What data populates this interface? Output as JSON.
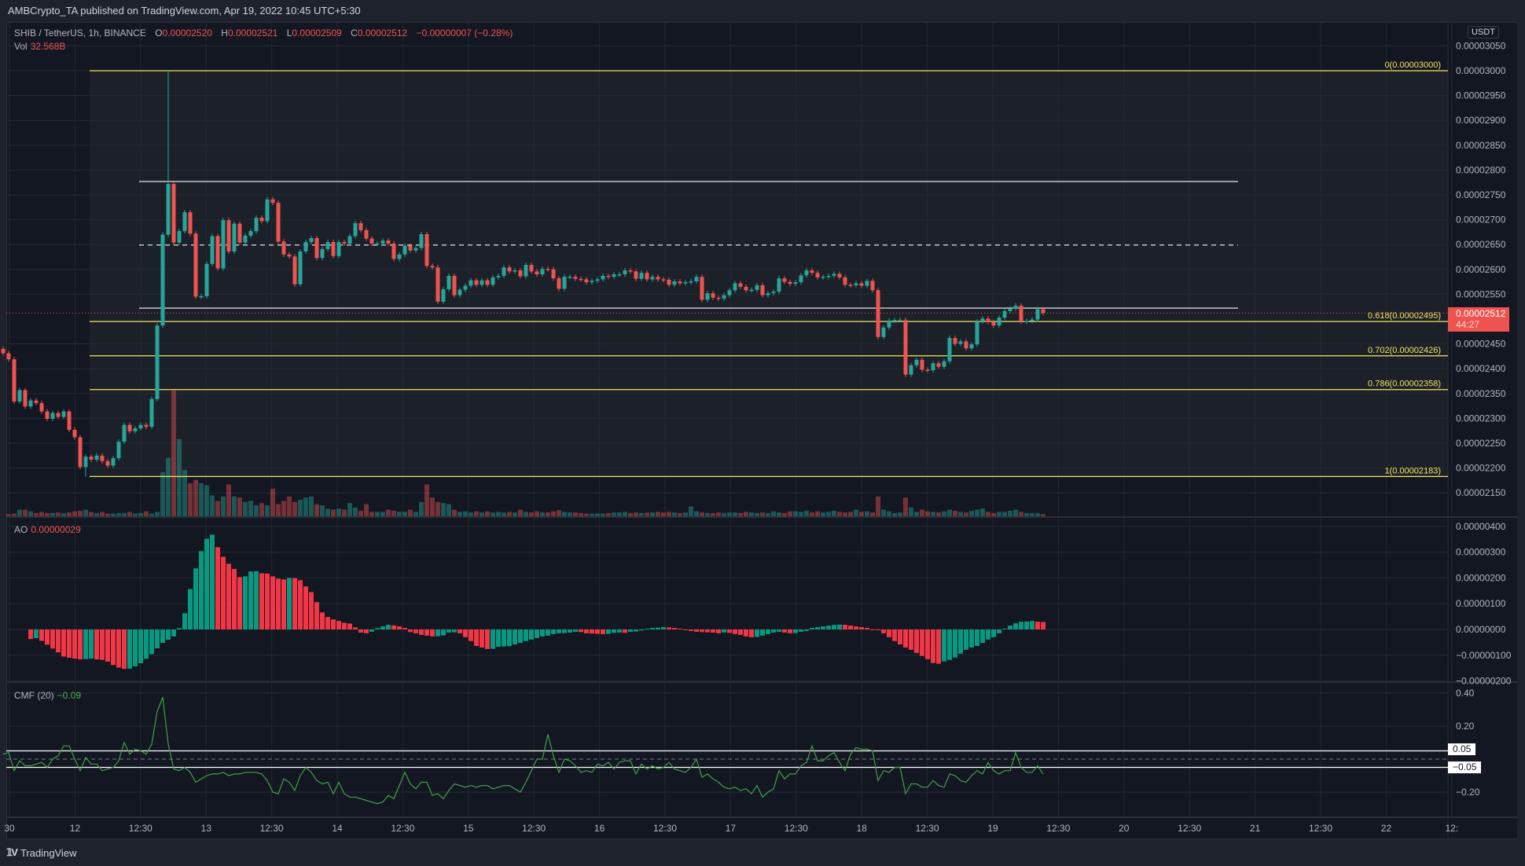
{
  "header": {
    "published": "AMBCrypto_TA published on TradingView.com, Apr 19, 2022 10:45 UTC+5:30"
  },
  "legend": {
    "symbol": "SHIB / TetherUS, 1h, BINANCE",
    "o_label": "O",
    "o": "0.00002520",
    "h_label": "H",
    "h": "0.00002521",
    "l_label": "L",
    "l": "0.00002509",
    "c_label": "C",
    "c": "0.00002512",
    "change": "−0.00000007 (−0.28%)",
    "vol_label": "Vol",
    "vol": "32.568B"
  },
  "price_axis": {
    "currency": "USDT",
    "ticks": [
      "0.00003050",
      "0.00003000",
      "0.00002950",
      "0.00002900",
      "0.00002850",
      "0.00002800",
      "0.00002750",
      "0.00002700",
      "0.00002650",
      "0.00002600",
      "0.00002550",
      "0.00002450",
      "0.00002400",
      "0.00002350",
      "0.00002300",
      "0.00002250",
      "0.00002200",
      "0.00002150"
    ],
    "current_price": "0.00002512",
    "countdown": "44:27"
  },
  "time_axis": {
    "ticks": [
      "30",
      "12",
      "12:30",
      "13",
      "12:30",
      "14",
      "12:30",
      "15",
      "12:30",
      "16",
      "12:30",
      "17",
      "12:30",
      "18",
      "12:30",
      "19",
      "12:30",
      "20",
      "12:30",
      "21",
      "12:30",
      "22",
      "12:"
    ]
  },
  "fib_levels": [
    {
      "label": "0(0.00003000)",
      "price": 3e-05
    },
    {
      "label": "0.618(0.00002495)",
      "price": 2.495e-05
    },
    {
      "label": "0.702(0.00002426)",
      "price": 2.426e-05
    },
    {
      "label": "0.786(0.00002358)",
      "price": 2.358e-05
    },
    {
      "label": "1(0.00002183)",
      "price": 2.183e-05
    }
  ],
  "range_lines": [
    {
      "price": 2.777e-05,
      "style": "solid"
    },
    {
      "price": 2.649e-05,
      "style": "dashed"
    },
    {
      "price": 2.522e-05,
      "style": "solid"
    }
  ],
  "ao": {
    "label": "AO",
    "value": "0.00000029",
    "ticks": [
      "0.00000400",
      "0.00000300",
      "0.00000200",
      "0.00000100",
      "0.00000000",
      "−0.00000100",
      "−0.00000200"
    ]
  },
  "cmf": {
    "label": "CMF (20)",
    "value": "−0.09",
    "ticks": [
      "0.40",
      "0.20",
      "−0.20"
    ],
    "bands": [
      "0.05",
      "−0.05"
    ]
  },
  "colors": {
    "up": "#26a69a",
    "down": "#ef5350",
    "ao_up": "#089981",
    "ao_down": "#f23645",
    "fib": "#f5e663",
    "cmf_line": "#43a047",
    "background": "#131722"
  },
  "footer": {
    "brand": "TradingView"
  },
  "chart_data": [
    {
      "type": "candlestick",
      "title": "SHIB / TetherUS, 1h, BINANCE",
      "ylim": [
        2.12e-05,
        3.07e-05
      ],
      "open_first": 2.44e-05,
      "close": [
        2.431e-05,
        2.419e-05,
        2.334e-05,
        2.357e-05,
        2.324e-05,
        2.336e-05,
        2.331e-05,
        2.314e-05,
        2.299e-05,
        2.311e-05,
        2.303e-05,
        2.314e-05,
        2.277e-05,
        2.262e-05,
        2.202e-05,
        2.223e-05,
        2.217e-05,
        2.225e-05,
        2.214e-05,
        2.205e-05,
        2.22e-05,
        2.253e-05,
        2.287e-05,
        2.274e-05,
        2.28e-05,
        2.287e-05,
        2.283e-05,
        2.339e-05,
        2.487e-05,
        2.67e-05,
        2.772e-05,
        2.654e-05,
        2.677e-05,
        2.715e-05,
        2.672e-05,
        2.545e-05,
        2.546e-05,
        2.611e-05,
        2.667e-05,
        2.602e-05,
        2.699e-05,
        2.636e-05,
        2.692e-05,
        2.654e-05,
        2.668e-05,
        2.677e-05,
        2.704e-05,
        2.697e-05,
        2.741e-05,
        2.734e-05,
        2.656e-05,
        2.63e-05,
        2.626e-05,
        2.57e-05,
        2.636e-05,
        2.655e-05,
        2.663e-05,
        2.623e-05,
        2.641e-05,
        2.655e-05,
        2.627e-05,
        2.655e-05,
        2.652e-05,
        2.667e-05,
        2.693e-05,
        2.679e-05,
        2.662e-05,
        2.652e-05,
        2.652e-05,
        2.658e-05,
        2.652e-05,
        2.621e-05,
        2.63e-05,
        2.648e-05,
        2.638e-05,
        2.643e-05,
        2.671e-05,
        2.607e-05,
        2.604e-05,
        2.535e-05,
        2.56e-05,
        2.587e-05,
        2.548e-05,
        2.559e-05,
        2.567e-05,
        2.578e-05,
        2.569e-05,
        2.578e-05,
        2.569e-05,
        2.584e-05,
        2.587e-05,
        2.604e-05,
        2.596e-05,
        2.598e-05,
        2.586e-05,
        2.609e-05,
        2.596e-05,
        2.59e-05,
        2.601e-05,
        2.6e-05,
        2.582e-05,
        2.561e-05,
        2.585e-05,
        2.585e-05,
        2.581e-05,
        2.58e-05,
        2.574e-05,
        2.577e-05,
        2.58e-05,
        2.587e-05,
        2.585e-05,
        2.59e-05,
        2.59e-05,
        2.598e-05,
        2.596e-05,
        2.581e-05,
        2.593e-05,
        2.58e-05,
        2.585e-05,
        2.58e-05,
        2.579e-05,
        2.569e-05,
        2.576e-05,
        2.572e-05,
        2.574e-05,
        2.576e-05,
        2.585e-05,
        2.539e-05,
        2.552e-05,
        2.543e-05,
        2.541e-05,
        2.548e-05,
        2.558e-05,
        2.572e-05,
        2.565e-05,
        2.558e-05,
        2.559e-05,
        2.568e-05,
        2.548e-05,
        2.552e-05,
        2.555e-05,
        2.582e-05,
        2.575e-05,
        2.571e-05,
        2.574e-05,
        2.588e-05,
        2.598e-05,
        2.593e-05,
        2.584e-05,
        2.585e-05,
        2.587e-05,
        2.591e-05,
        2.584e-05,
        2.569e-05,
        2.568e-05,
        2.572e-05,
        2.567e-05,
        2.577e-05,
        2.558e-05,
        2.464e-05,
        2.483e-05,
        2.497e-05,
        2.498e-05,
        2.498e-05,
        2.388e-05,
        2.407e-05,
        2.418e-05,
        2.398e-05,
        2.397e-05,
        2.411e-05,
        2.404e-05,
        2.415e-05,
        2.462e-05,
        2.45e-05,
        2.455e-05,
        2.441e-05,
        2.449e-05,
        2.495e-05,
        2.501e-05,
        2.494e-05,
        2.487e-05,
        2.503e-05,
        2.516e-05,
        2.521e-05,
        2.527e-05,
        2.495e-05,
        2.496e-05,
        2.499e-05,
        2.52e-05,
        2.512e-05
      ],
      "notable_highs": [
        {
          "index": 30,
          "high": 3e-05
        }
      ],
      "notable_lows": [
        {
          "index": 15,
          "low": 2.183e-05
        }
      ],
      "volume_billions": [
        20,
        25,
        60,
        60,
        45,
        30,
        40,
        30,
        30,
        35,
        30,
        35,
        45,
        50,
        60,
        40,
        30,
        40,
        25,
        25,
        30,
        30,
        40,
        25,
        30,
        45,
        25,
        40,
        400,
        530,
        1140,
        700,
        420,
        300,
        330,
        300,
        280,
        190,
        140,
        180,
        290,
        180,
        170,
        130,
        140,
        100,
        120,
        100,
        250,
        110,
        140,
        180,
        130,
        150,
        170,
        180,
        110,
        100,
        70,
        60,
        70,
        60,
        120,
        80,
        50,
        110,
        40,
        40,
        40,
        60,
        50,
        40,
        40,
        60,
        40,
        130,
        290,
        170,
        130,
        120,
        110,
        60,
        40,
        45,
        35,
        45,
        35,
        45,
        35,
        40,
        35,
        40,
        35,
        60,
        40,
        35,
        45,
        35,
        35,
        45,
        55,
        40,
        35,
        35,
        30,
        25,
        25,
        25,
        25,
        30,
        35,
        35,
        40,
        30,
        35,
        30,
        35,
        35,
        40,
        35,
        40,
        35,
        30,
        35,
        90,
        45,
        35,
        30,
        30,
        35,
        30,
        35,
        35,
        30,
        40,
        35,
        30,
        35,
        30,
        45,
        35,
        30,
        45,
        45,
        40,
        50,
        35,
        45,
        35,
        40,
        50,
        40,
        35,
        40,
        60,
        40,
        45,
        35,
        180,
        60,
        45,
        30,
        35,
        170,
        80,
        40,
        60,
        45,
        40,
        35,
        45,
        60,
        50,
        40,
        35,
        50,
        60,
        70,
        40,
        30,
        40,
        40,
        50,
        60,
        40,
        30,
        30,
        30,
        20
      ]
    },
    {
      "type": "bar",
      "title": "AO",
      "ylim": [
        -2e-06,
        4e-06
      ],
      "values_e8": "values below are in units of 1e-8",
      "values": [
        -37,
        -34,
        -44,
        -59,
        -74,
        -89,
        -105,
        -110,
        -113,
        -116,
        -115,
        -113,
        -116,
        -118,
        -125,
        -138,
        -148,
        -153,
        -152,
        -143,
        -131,
        -114,
        -96,
        -73,
        -52,
        -40,
        -27,
        5,
        63,
        157,
        237,
        304,
        352,
        368,
        319,
        282,
        255,
        235,
        203,
        206,
        225,
        226,
        218,
        217,
        206,
        197,
        194,
        200,
        199,
        191,
        167,
        145,
        106,
        66,
        48,
        39,
        33,
        26,
        23,
        8,
        -12,
        -15,
        -9,
        5,
        12,
        18,
        16,
        12,
        6,
        -10,
        -15,
        -21,
        -24,
        -27,
        -26,
        -23,
        -12,
        -11,
        -15,
        -30,
        -45,
        -64,
        -70,
        -76,
        -75,
        -67,
        -66,
        -65,
        -58,
        -52,
        -45,
        -39,
        -33,
        -27,
        -24,
        -18,
        -15,
        -14,
        -12,
        -9,
        -10,
        -15,
        -16,
        -17,
        -18,
        -17,
        -13,
        -12,
        -13,
        -9,
        -8,
        -4,
        3,
        6,
        7,
        9,
        8,
        6,
        3,
        0,
        -6,
        -9,
        -10,
        -11,
        -12,
        -15,
        -12,
        -13,
        -18,
        -21,
        -27,
        -30,
        -29,
        -24,
        -18,
        -12,
        -9,
        -12,
        -15,
        -14,
        -9,
        -6,
        6,
        9,
        12,
        15,
        18,
        19,
        18,
        15,
        12,
        9,
        6,
        0,
        -1,
        -15,
        -30,
        -45,
        -58,
        -70,
        -79,
        -91,
        -103,
        -115,
        -130,
        -133,
        -124,
        -118,
        -109,
        -94,
        -79,
        -70,
        -64,
        -52,
        -39,
        -30,
        -15,
        3,
        15,
        24,
        30,
        31,
        33,
        30,
        29
      ]
    },
    {
      "type": "line",
      "title": "CMF (20)",
      "ylim": [
        -0.3,
        0.44
      ],
      "bands": [
        0.05,
        -0.05
      ],
      "values": [
        0.03,
        0.04,
        -0.07,
        -0.01,
        -0.04,
        -0.04,
        -0.03,
        -0.02,
        -0.05,
        0,
        0.02,
        0.08,
        0.08,
        0,
        -0.07,
        0.01,
        -0.03,
        -0.03,
        -0.07,
        -0.06,
        -0.05,
        -0.01,
        0.1,
        0.03,
        0.06,
        0.05,
        0.03,
        0.09,
        0.29,
        0.375,
        0.09,
        -0.06,
        -0.07,
        -0.05,
        -0.08,
        -0.14,
        -0.12,
        -0.1,
        -0.09,
        -0.09,
        -0.08,
        -0.1,
        -0.09,
        -0.09,
        -0.08,
        -0.08,
        -0.08,
        -0.09,
        -0.13,
        -0.2,
        -0.21,
        -0.12,
        -0.14,
        -0.19,
        -0.1,
        -0.05,
        -0.08,
        -0.13,
        -0.15,
        -0.14,
        -0.21,
        -0.14,
        -0.21,
        -0.23,
        -0.23,
        -0.24,
        -0.25,
        -0.26,
        -0.27,
        -0.26,
        -0.22,
        -0.24,
        -0.16,
        -0.08,
        -0.15,
        -0.18,
        -0.14,
        -0.14,
        -0.22,
        -0.21,
        -0.24,
        -0.19,
        -0.15,
        -0.16,
        -0.17,
        -0.16,
        -0.17,
        -0.16,
        -0.16,
        -0.18,
        -0.17,
        -0.16,
        -0.16,
        -0.18,
        -0.2,
        -0.14,
        -0.07,
        0,
        0,
        0.15,
        0.02,
        -0.08,
        0,
        -0.01,
        -0.04,
        -0.08,
        -0.07,
        -0.08,
        -0.03,
        -0.04,
        -0.02,
        -0.06,
        -0.02,
        -0.01,
        -0.01,
        -0.09,
        -0.03,
        -0.06,
        -0.04,
        -0.06,
        -0.05,
        -0.02,
        -0.06,
        -0.07,
        -0.08,
        -0.05,
        0,
        -0.11,
        -0.09,
        -0.12,
        -0.14,
        -0.17,
        -0.18,
        -0.17,
        -0.19,
        -0.18,
        -0.21,
        -0.16,
        -0.23,
        -0.2,
        -0.18,
        -0.07,
        -0.12,
        -0.09,
        -0.09,
        -0.04,
        -0.02,
        0.08,
        -0.01,
        -0.01,
        0.02,
        0.04,
        -0.02,
        -0.07,
        0.03,
        0.07,
        0.06,
        0.06,
        0.05,
        -0.13,
        -0.07,
        -0.08,
        -0.05,
        -0.05,
        -0.21,
        -0.15,
        -0.15,
        -0.17,
        -0.17,
        -0.13,
        -0.16,
        -0.17,
        -0.09,
        -0.1,
        -0.13,
        -0.14,
        -0.1,
        -0.07,
        -0.09,
        -0.02,
        -0.07,
        -0.09,
        -0.07,
        -0.07,
        0.04,
        -0.05,
        -0.08,
        -0.08,
        -0.04,
        -0.09
      ]
    }
  ]
}
